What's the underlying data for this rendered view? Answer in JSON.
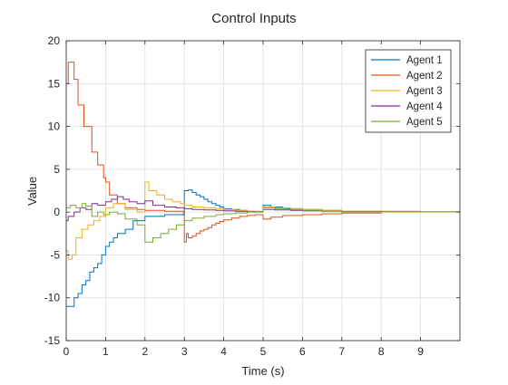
{
  "chart_data": {
    "type": "line",
    "title": "Control Inputs",
    "xlabel": "Time (s)",
    "ylabel": "Value",
    "xlim": [
      0,
      10
    ],
    "ylim": [
      -15,
      20
    ],
    "xticks": [
      0,
      1,
      2,
      3,
      4,
      5,
      6,
      7,
      8,
      9
    ],
    "yticks": [
      -15,
      -10,
      -5,
      0,
      5,
      10,
      15,
      20
    ],
    "grid": true,
    "legend_position": "top-right",
    "series": [
      {
        "name": "Agent 1",
        "color": "#0072BD",
        "x": [
          0,
          0.1,
          0.2,
          0.3,
          0.4,
          0.5,
          0.6,
          0.7,
          0.8,
          0.9,
          1.0,
          1.1,
          1.2,
          1.3,
          1.5,
          1.7,
          2.0,
          2.5,
          2.98,
          3.0,
          3.1,
          3.2,
          3.3,
          3.4,
          3.5,
          3.6,
          3.7,
          3.8,
          3.9,
          4.0,
          4.2,
          4.4,
          4.6,
          4.8,
          5.0,
          5.2,
          5.5,
          6.0,
          6.5,
          7.0,
          8.0,
          9.0,
          10.0
        ],
        "y": [
          -11,
          -11,
          -10,
          -9.5,
          -8.5,
          -8,
          -7,
          -6.5,
          -6,
          -5,
          -4,
          -3.5,
          -3,
          -2.5,
          -2,
          -1,
          -0.5,
          -0.3,
          -0.2,
          2.5,
          2.6,
          2.3,
          2.0,
          1.8,
          1.5,
          1.2,
          1.0,
          0.8,
          0.6,
          0.4,
          0.3,
          0.2,
          0.1,
          0.05,
          0.8,
          0.6,
          0.4,
          0.3,
          0.2,
          0.1,
          0.05,
          0.02,
          0.0
        ]
      },
      {
        "name": "Agent 2",
        "color": "#D95319",
        "x": [
          0,
          0.05,
          0.2,
          0.3,
          0.45,
          0.65,
          0.8,
          0.95,
          1.0,
          1.1,
          1.3,
          1.5,
          1.8,
          2.0,
          2.5,
          2.98,
          3.0,
          3.05,
          3.1,
          3.2,
          3.3,
          3.4,
          3.5,
          3.6,
          3.7,
          3.8,
          3.9,
          4.0,
          4.2,
          4.4,
          4.6,
          4.8,
          5.0,
          5.2,
          5.5,
          6.0,
          6.5,
          7.0,
          8.0,
          9.0,
          10.0
        ],
        "y": [
          15,
          17.5,
          15.5,
          12.5,
          10,
          7,
          5.5,
          4,
          3.5,
          2,
          1,
          0.5,
          0.3,
          0.2,
          0.1,
          0.0,
          -3.5,
          -2.5,
          -3.0,
          -2.8,
          -2.5,
          -2.2,
          -2.0,
          -1.8,
          -1.5,
          -1.3,
          -1.1,
          -0.9,
          -0.7,
          -0.5,
          -0.4,
          -0.3,
          -0.8,
          -0.6,
          -0.4,
          -0.3,
          -0.2,
          -0.1,
          0.1,
          0.05,
          0.0
        ]
      },
      {
        "name": "Agent 3",
        "color": "#EDB120",
        "x": [
          0,
          0.05,
          0.15,
          0.25,
          0.4,
          0.55,
          0.7,
          0.85,
          1.0,
          1.2,
          1.5,
          1.8,
          2.0,
          2.1,
          2.3,
          2.5,
          2.7,
          2.9,
          3.0,
          3.2,
          3.5,
          3.8,
          4.0,
          4.3,
          4.6,
          5.0,
          5.3,
          5.7,
          6.0,
          6.5,
          7.0,
          8.0,
          9.0,
          10.0
        ],
        "y": [
          -4.5,
          -5.5,
          -5.0,
          -3.0,
          -2.0,
          -1.5,
          -1.0,
          -0.5,
          0.5,
          1.0,
          0.3,
          0.0,
          3.5,
          2.5,
          2.0,
          1.5,
          1.2,
          1.0,
          0.8,
          0.6,
          0.5,
          0.4,
          0.3,
          0.2,
          0.1,
          0.6,
          0.5,
          0.4,
          0.3,
          0.2,
          0.1,
          0.05,
          0.02,
          0.0
        ]
      },
      {
        "name": "Agent 4",
        "color": "#7E2F8E",
        "x": [
          0,
          0.05,
          0.2,
          0.35,
          0.5,
          0.65,
          0.8,
          1.0,
          1.15,
          1.3,
          1.45,
          1.6,
          1.8,
          2.0,
          2.2,
          2.5,
          2.8,
          3.0,
          3.2,
          3.5,
          3.8,
          4.0,
          4.3,
          4.6,
          5.0,
          5.3,
          5.7,
          6.0,
          6.5,
          7.0,
          8.0,
          9.0,
          10.0
        ],
        "y": [
          -1.0,
          -0.5,
          0.0,
          0.5,
          0.3,
          1.0,
          0.8,
          1.2,
          1.5,
          1.8,
          1.5,
          1.2,
          1.0,
          1.3,
          0.8,
          0.6,
          0.5,
          0.4,
          0.3,
          0.25,
          0.2,
          0.15,
          0.1,
          0.05,
          0.3,
          0.25,
          0.2,
          0.15,
          0.1,
          0.05,
          0.02,
          0.01,
          0.0
        ]
      },
      {
        "name": "Agent 5",
        "color": "#77AC30",
        "x": [
          0,
          0.1,
          0.25,
          0.4,
          0.5,
          0.65,
          0.8,
          0.95,
          1.1,
          1.3,
          1.5,
          1.8,
          2.0,
          2.2,
          2.4,
          2.6,
          2.8,
          3.0,
          3.2,
          3.5,
          3.8,
          4.0,
          4.3,
          4.6,
          5.0,
          5.3,
          5.6,
          6.0,
          6.5,
          7.0,
          8.0,
          9.0,
          10.0
        ],
        "y": [
          0.5,
          0.8,
          0.5,
          1.0,
          0.7,
          -0.5,
          0.0,
          -0.3,
          0.0,
          -0.2,
          -0.8,
          -1.5,
          -3.5,
          -3.0,
          -2.5,
          -2.0,
          -1.5,
          -1.0,
          -0.7,
          -0.5,
          -0.3,
          -0.2,
          -0.1,
          0.0,
          0.5,
          0.4,
          0.3,
          0.2,
          0.1,
          0.05,
          0.02,
          0.01,
          0.0
        ]
      }
    ]
  }
}
